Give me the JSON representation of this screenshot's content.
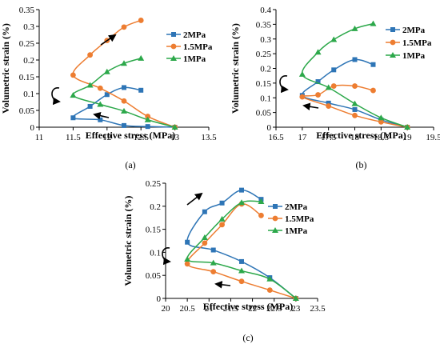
{
  "colors": {
    "2MPa": "#2E75B6",
    "1.5MPa": "#ED7D31",
    "1MPa": "#2CA84A"
  },
  "chart_data": [
    {
      "type": "line",
      "panel_label": "(a)",
      "xlabel": "Effective stress (MPa)",
      "ylabel": "Volumetric strain (%)",
      "xlim": [
        11,
        13.5
      ],
      "ylim": [
        0,
        0.35
      ],
      "xticks": [
        "11",
        "11.5",
        "12",
        "12.5",
        "13",
        "13.5"
      ],
      "yticks": [
        "0",
        "0.05",
        "0.1",
        "0.15",
        "0.2",
        "0.25",
        "0.3",
        "0.35"
      ],
      "grid": false,
      "legend": "right",
      "series": [
        {
          "name": "2MPa",
          "marker": "square",
          "x": [
            13,
            12.6,
            12.25,
            11.9,
            11.5,
            11.75,
            12,
            12.25,
            12.5
          ],
          "y": [
            0,
            0.002,
            0.005,
            0.022,
            0.028,
            0.062,
            0.097,
            0.118,
            0.11
          ]
        },
        {
          "name": "1.5MPa",
          "marker": "circle",
          "x": [
            13,
            12.6,
            12.25,
            11.9,
            11.5,
            11.75,
            12,
            12.25,
            12.5
          ],
          "y": [
            0,
            0.032,
            0.078,
            0.116,
            0.155,
            0.215,
            0.258,
            0.298,
            0.318
          ]
        },
        {
          "name": "1MPa",
          "marker": "triangle",
          "x": [
            13,
            12.6,
            12.25,
            11.9,
            11.5,
            11.75,
            12,
            12.25,
            12.5
          ],
          "y": [
            0,
            0.022,
            0.048,
            0.068,
            0.095,
            0.125,
            0.165,
            0.19,
            0.205
          ]
        }
      ]
    },
    {
      "type": "line",
      "panel_label": "(b)",
      "xlabel": "Effective stress (MPa)",
      "ylabel": "Volumetric strain (%)",
      "xlim": [
        16.5,
        19.5
      ],
      "ylim": [
        0,
        0.4
      ],
      "xticks": [
        "16.5",
        "17",
        "17.5",
        "18",
        "18.5",
        "19",
        "19.5"
      ],
      "yticks": [
        "0",
        "0.05",
        "0.1",
        "0.15",
        "0.2",
        "0.25",
        "0.3",
        "0.35",
        "0.4"
      ],
      "grid": false,
      "legend": "right",
      "series": [
        {
          "name": "2MPa",
          "marker": "square",
          "x": [
            19,
            18.5,
            18,
            17.5,
            17,
            17.3,
            17.6,
            18,
            18.35
          ],
          "y": [
            0,
            0.025,
            0.06,
            0.082,
            0.108,
            0.155,
            0.195,
            0.23,
            0.213
          ]
        },
        {
          "name": "1.5MPa",
          "marker": "circle",
          "x": [
            19,
            18.5,
            18,
            17.5,
            17,
            17.3,
            17.6,
            18,
            18.35
          ],
          "y": [
            0,
            0.018,
            0.04,
            0.072,
            0.103,
            0.11,
            0.14,
            0.14,
            0.125
          ]
        },
        {
          "name": "1MPa",
          "marker": "triangle",
          "x": [
            19,
            18.5,
            18,
            17.5,
            17,
            17.3,
            17.6,
            18,
            18.35
          ],
          "y": [
            0,
            0.032,
            0.08,
            0.135,
            0.18,
            0.255,
            0.298,
            0.335,
            0.352
          ]
        }
      ]
    },
    {
      "type": "line",
      "panel_label": "(c)",
      "xlabel": "Effective stress (MPa)",
      "ylabel": "Volumetric strain (%)",
      "xlim": [
        20,
        23.5
      ],
      "ylim": [
        0,
        0.25
      ],
      "xticks": [
        "20",
        "20.5",
        "21",
        "21.5",
        "22",
        "22.5",
        "23",
        "23.5"
      ],
      "yticks": [
        "0",
        "0.05",
        "0.1",
        "0.15",
        "0.2",
        "0.25"
      ],
      "grid": false,
      "legend": "right",
      "series": [
        {
          "name": "2MPa",
          "marker": "square",
          "x": [
            23,
            22.4,
            21.75,
            21.1,
            20.5,
            20.9,
            21.3,
            21.75,
            22.2
          ],
          "y": [
            0,
            0.045,
            0.08,
            0.105,
            0.122,
            0.188,
            0.207,
            0.235,
            0.215
          ]
        },
        {
          "name": "1.5MPa",
          "marker": "circle",
          "x": [
            23,
            22.4,
            21.75,
            21.1,
            20.5,
            20.9,
            21.3,
            21.75,
            22.2
          ],
          "y": [
            0,
            0.018,
            0.037,
            0.058,
            0.075,
            0.12,
            0.16,
            0.205,
            0.18
          ]
        },
        {
          "name": "1MPa",
          "marker": "triangle",
          "x": [
            23,
            22.4,
            21.75,
            21.1,
            20.5,
            20.9,
            21.3,
            21.75,
            22.2
          ],
          "y": [
            0,
            0.042,
            0.06,
            0.077,
            0.085,
            0.132,
            0.172,
            0.208,
            0.21
          ]
        }
      ]
    }
  ]
}
